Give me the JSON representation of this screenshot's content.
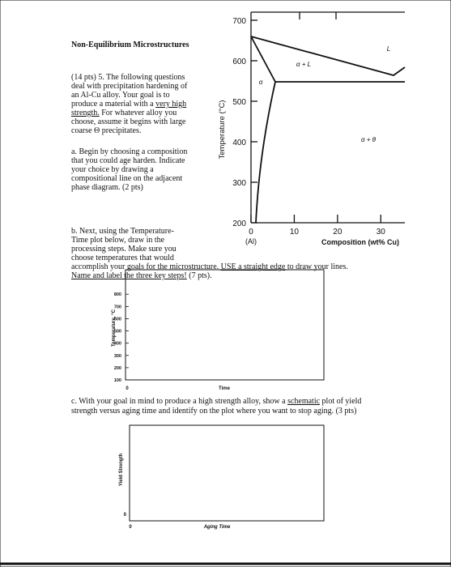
{
  "title": "Non-Equilibrium Microstructures",
  "question": {
    "lines": [
      [
        "(14 pts) 5.  The following questions"
      ],
      [
        "deal with precipitation hardening of"
      ],
      [
        "an Al-Cu alloy.  Your goal is to"
      ],
      [
        "produce a material with a ",
        {
          "t": "very high",
          "u": true
        }
      ],
      [
        {
          "t": "strength.",
          "u": true
        },
        " For whatever alloy you"
      ],
      [
        "choose, assume it begins with large"
      ],
      [
        "coarse Θ precipitates."
      ]
    ]
  },
  "part_a": {
    "lines": [
      [
        "a. Begin by choosing a composition"
      ],
      [
        "that you could age harden.  Indicate"
      ],
      [
        "your choice by drawing a"
      ],
      [
        "compositional line on the adjacent"
      ],
      [
        "phase diagram. (2 pts)"
      ]
    ]
  },
  "part_b": {
    "lines": [
      [
        "b. Next, using the Temperature-"
      ],
      [
        "Time plot below, draw in the"
      ],
      [
        "processing steps.  Make sure you"
      ],
      [
        "choose temperatures that would"
      ],
      [
        "accomplish your goals for the microstructure.  ",
        {
          "t": "USE a straight edge",
          "u": true
        },
        " to draw your lines."
      ],
      [
        {
          "t": "Name and label the three key steps!",
          "u": true
        },
        " (7 pts)."
      ]
    ]
  },
  "part_c": {
    "lines": [
      [
        "c. With your goal in mind to produce a high strength alloy, show a ",
        {
          "t": "schematic",
          "u": true
        },
        " plot of yield"
      ],
      [
        "strength versus aging time and identify on the plot where you want to stop aging. (3 pts)"
      ]
    ]
  },
  "phase_diagram": {
    "ylabel": "Temperature (°C)",
    "xlabel": "Composition (wt% Cu)",
    "x_origin_label": "(Al)",
    "ylim": [
      200,
      700
    ],
    "yticks": [
      200,
      300,
      400,
      500,
      600,
      700
    ],
    "xlim": [
      0,
      35
    ],
    "xticks": [
      0,
      10,
      20,
      30
    ],
    "region_labels": [
      "α + L",
      "L",
      "α",
      "α + θ"
    ]
  },
  "temperature_time_plot": {
    "ylabel": "Temperature, °C",
    "xlabel": "Time",
    "x_origin_label": "0",
    "ylim": [
      100,
      1000
    ],
    "yticks": [
      100,
      200,
      300,
      400,
      500,
      600,
      700,
      800
    ]
  },
  "strength_time_plot": {
    "ylabel": "Yield Strength",
    "xlabel": "Aging Time",
    "y_origin_label": "0",
    "x_origin_label": "0"
  }
}
